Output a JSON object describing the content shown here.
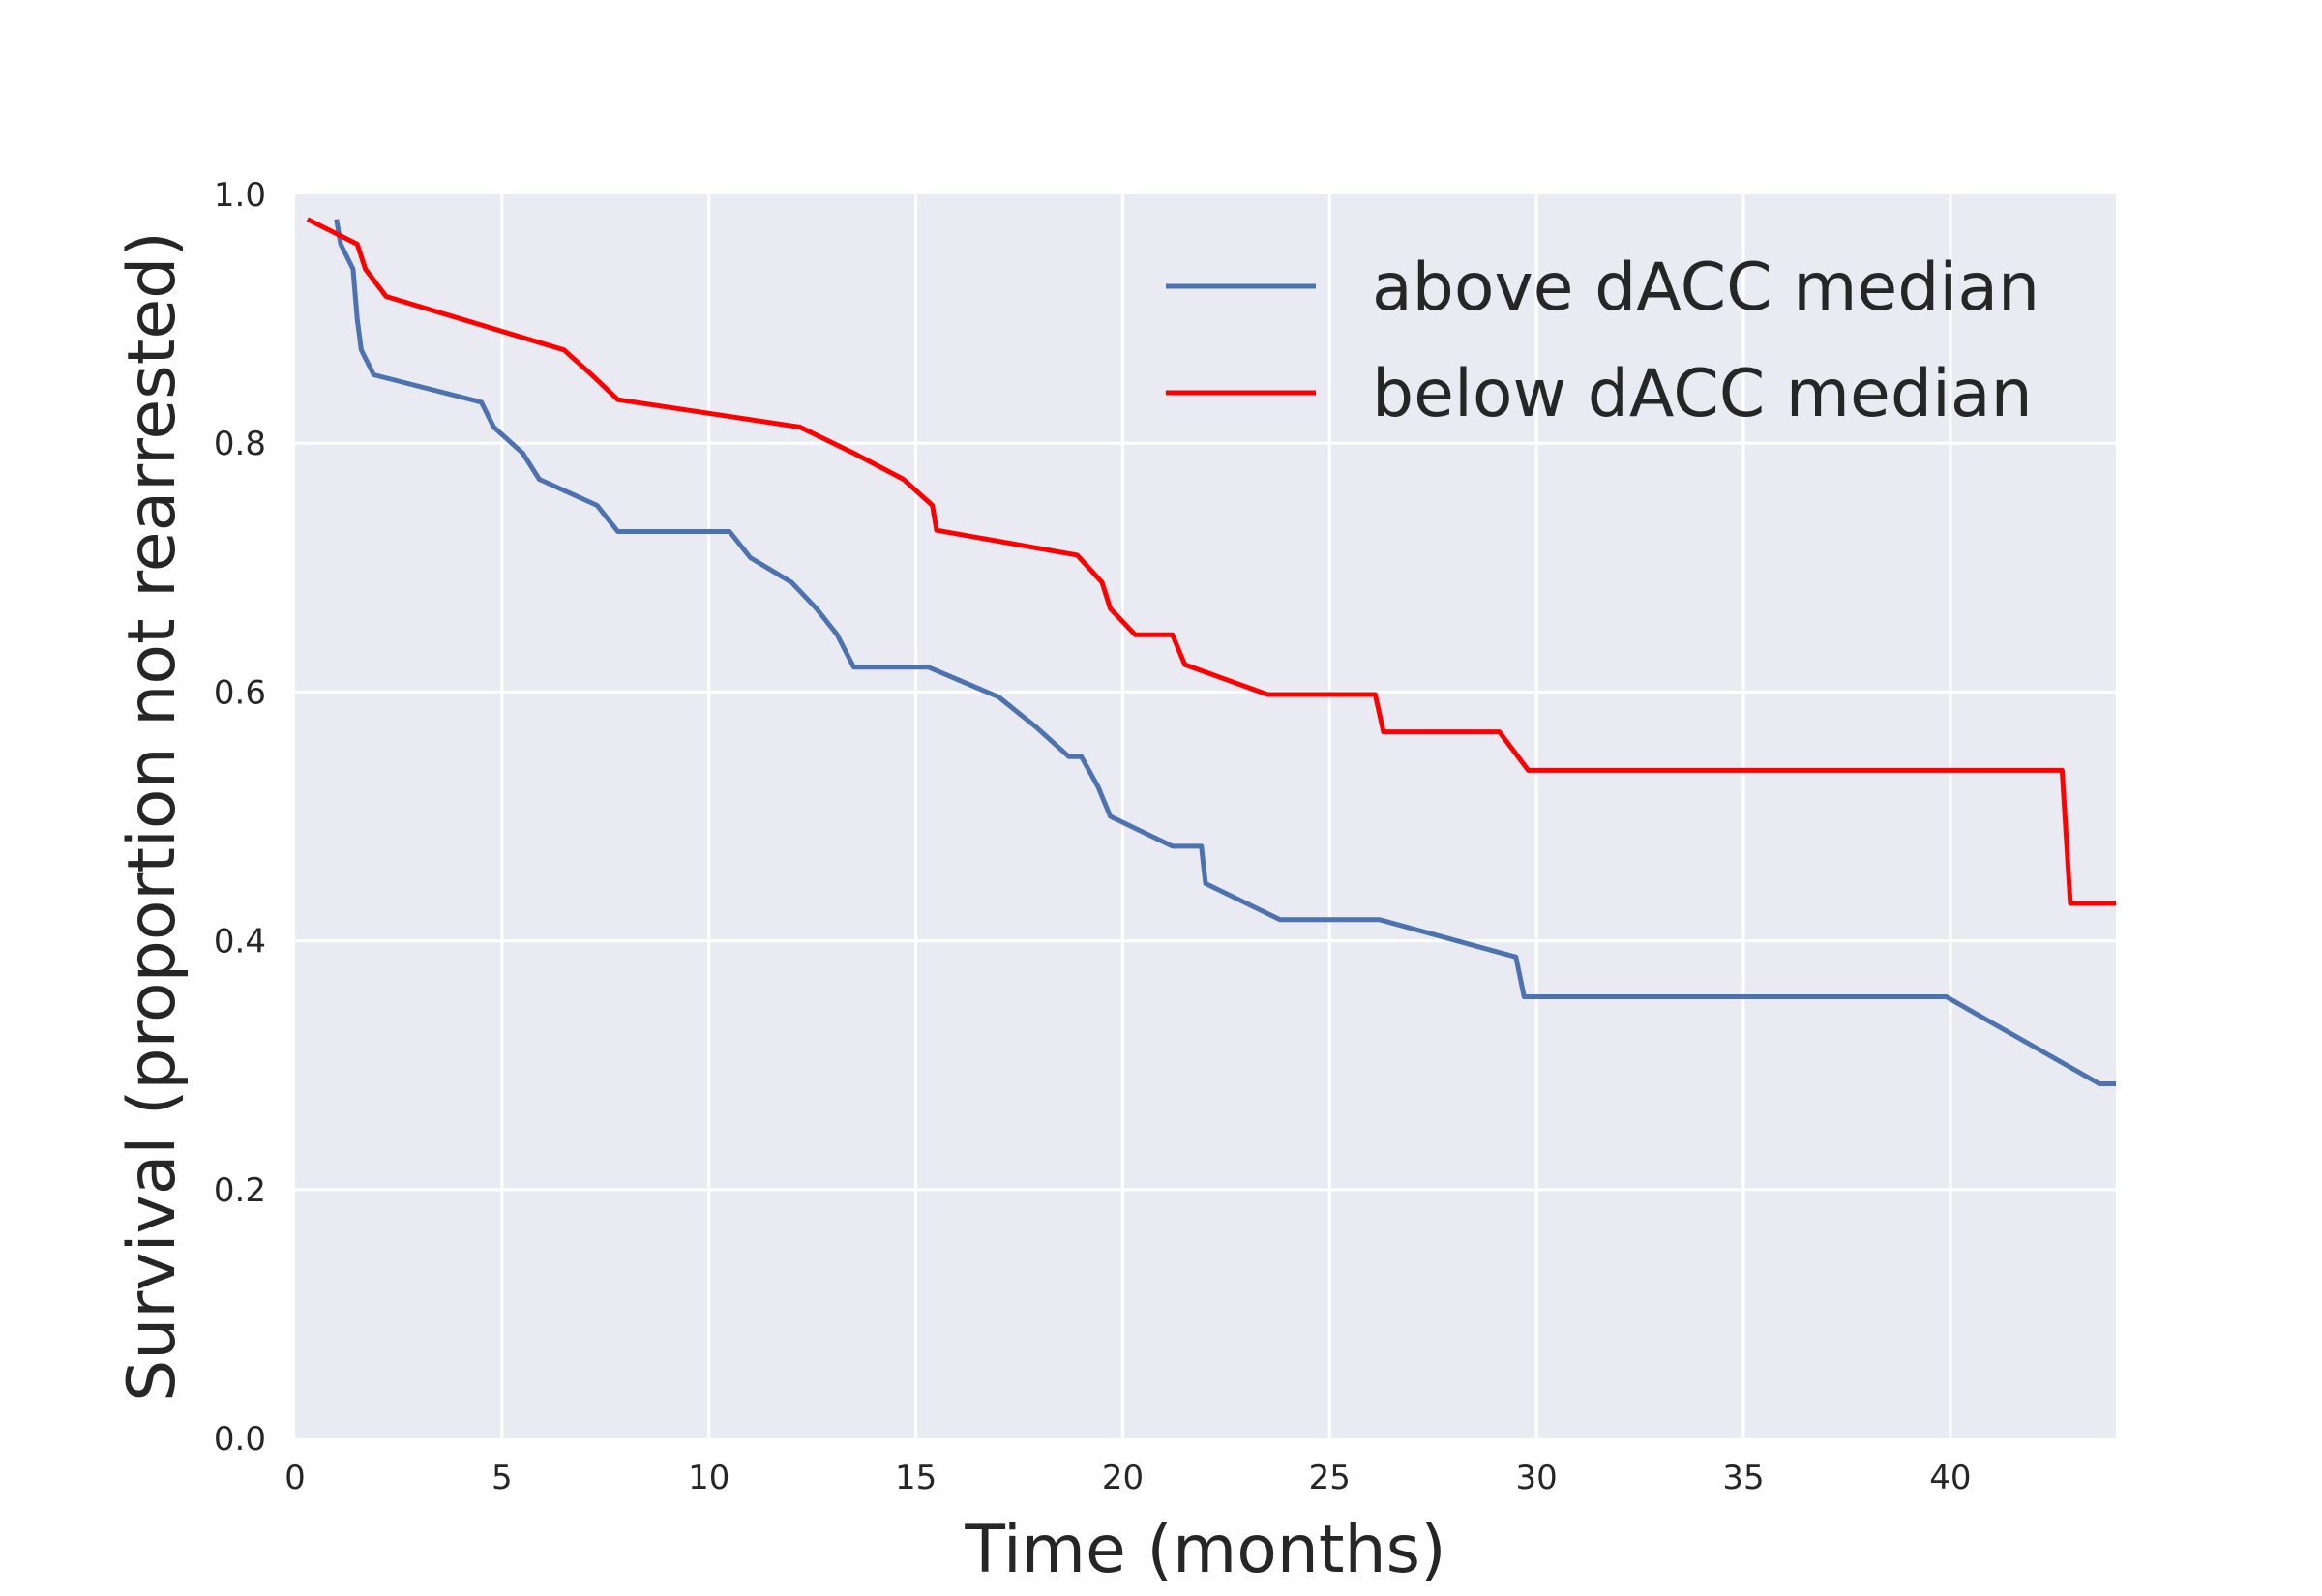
{
  "chart_data": {
    "type": "line",
    "title": "",
    "xlabel": "Time (months)",
    "ylabel": "Survival (proportion not rearrested)",
    "xlim": [
      0,
      44
    ],
    "ylim": [
      0.0,
      1.0
    ],
    "xticks": [
      "0",
      "5",
      "10",
      "15",
      "20",
      "25",
      "30",
      "35",
      "40"
    ],
    "yticks": [
      "0.0",
      "0.2",
      "0.4",
      "0.6",
      "0.8",
      "1.0"
    ],
    "grid": true,
    "legend_position": "top-right",
    "series": [
      {
        "name": "above dACC median",
        "color": "#4c72b0",
        "points": [
          [
            1.0,
            0.98
          ],
          [
            1.1,
            0.96
          ],
          [
            1.4,
            0.94
          ],
          [
            1.5,
            0.9
          ],
          [
            1.6,
            0.875
          ],
          [
            1.9,
            0.855
          ],
          [
            4.5,
            0.833
          ],
          [
            4.8,
            0.813
          ],
          [
            5.5,
            0.792
          ],
          [
            5.9,
            0.771
          ],
          [
            7.3,
            0.75
          ],
          [
            7.8,
            0.729
          ],
          [
            10.5,
            0.729
          ],
          [
            11.0,
            0.708
          ],
          [
            12.0,
            0.688
          ],
          [
            12.6,
            0.667
          ],
          [
            13.1,
            0.646
          ],
          [
            13.5,
            0.62
          ],
          [
            15.3,
            0.62
          ],
          [
            17.0,
            0.596
          ],
          [
            17.9,
            0.572
          ],
          [
            18.7,
            0.548
          ],
          [
            19.0,
            0.548
          ],
          [
            19.4,
            0.524
          ],
          [
            19.7,
            0.5
          ],
          [
            21.2,
            0.476
          ],
          [
            21.9,
            0.476
          ],
          [
            22.0,
            0.446
          ],
          [
            23.8,
            0.417
          ],
          [
            26.2,
            0.417
          ],
          [
            29.5,
            0.387
          ],
          [
            29.7,
            0.355
          ],
          [
            39.9,
            0.355
          ],
          [
            43.6,
            0.285
          ],
          [
            44.0,
            0.285
          ]
        ]
      },
      {
        "name": "below dACC median",
        "color": "#ff0000",
        "points": [
          [
            0.3,
            0.98
          ],
          [
            1.5,
            0.96
          ],
          [
            1.7,
            0.94
          ],
          [
            2.2,
            0.918
          ],
          [
            6.5,
            0.875
          ],
          [
            7.2,
            0.854
          ],
          [
            7.8,
            0.835
          ],
          [
            12.2,
            0.813
          ],
          [
            13.5,
            0.792
          ],
          [
            14.7,
            0.771
          ],
          [
            15.4,
            0.75
          ],
          [
            15.5,
            0.73
          ],
          [
            18.9,
            0.71
          ],
          [
            19.5,
            0.688
          ],
          [
            19.7,
            0.667
          ],
          [
            20.3,
            0.646
          ],
          [
            21.2,
            0.646
          ],
          [
            21.5,
            0.622
          ],
          [
            23.5,
            0.598
          ],
          [
            26.1,
            0.598
          ],
          [
            26.3,
            0.568
          ],
          [
            29.1,
            0.568
          ],
          [
            29.8,
            0.537
          ],
          [
            42.7,
            0.537
          ],
          [
            42.9,
            0.43
          ],
          [
            44.0,
            0.43
          ]
        ]
      }
    ]
  }
}
